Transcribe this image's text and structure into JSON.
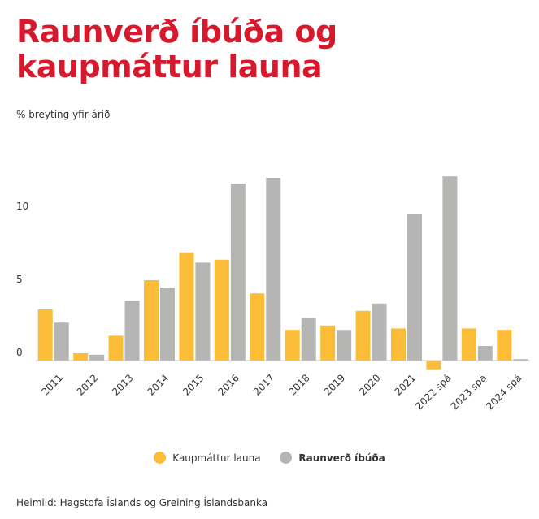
{
  "title": "Raunverð íbúða og kaupmáttur launa",
  "subtitle": "% breyting yfir árið",
  "source": "Heimild: Hagstofa Íslands og Greining Íslandsbanka",
  "colors": {
    "kaupmattur": "#fbbd38",
    "raunverd": "#b5b5b3",
    "title": "#d7192d"
  },
  "chart_data": {
    "type": "bar",
    "categories": [
      "2011",
      "2012",
      "2013",
      "2014",
      "2015",
      "2016",
      "2017",
      "2018",
      "2019",
      "2020",
      "2021",
      "2022 spá",
      "2023 spá",
      "2024 spá"
    ],
    "series": [
      {
        "name": "Kaupmáttur launa",
        "values": [
          3.5,
          0.5,
          1.7,
          5.5,
          7.4,
          6.9,
          4.6,
          2.1,
          2.4,
          3.4,
          2.2,
          -0.6,
          2.2,
          2.1
        ]
      },
      {
        "name": "Raunverð íbúða",
        "values": [
          2.6,
          0.4,
          4.1,
          5.0,
          6.7,
          12.1,
          12.5,
          2.9,
          2.1,
          3.9,
          10.0,
          12.6,
          1.0,
          0.1
        ]
      }
    ],
    "yticks": [
      0,
      5,
      10
    ],
    "ylim": [
      -0.8,
      12.6
    ],
    "grid": false,
    "legend_position": "bottom-center"
  }
}
